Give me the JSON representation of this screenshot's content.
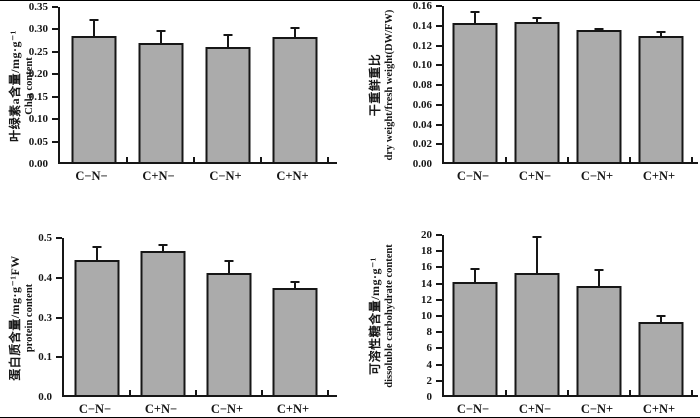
{
  "figure": {
    "background": "#ffffff",
    "bar_fill": "#ababab",
    "bar_border": "#161616",
    "axis_color": "#161616",
    "frame_line_color": "#000000"
  },
  "chart_data": [
    {
      "id": "chla",
      "type": "bar",
      "title": "",
      "ylabel_zh": "叶绿素a含量/mg·g⁻¹",
      "ylabel_en": "Chla content",
      "categories": [
        "C−N−",
        "C+N−",
        "C−N+",
        "C+N+"
      ],
      "values": [
        0.285,
        0.268,
        0.26,
        0.283
      ],
      "errors": [
        0.038,
        0.029,
        0.029,
        0.023
      ],
      "ylim": [
        0,
        0.35
      ],
      "yticks": [
        "0.00",
        "0.05",
        "0.10",
        "0.15",
        "0.20",
        "0.25",
        "0.30",
        "0.35"
      ],
      "grid": "off",
      "legend": "none"
    },
    {
      "id": "dry-weight-fresh-weight",
      "type": "bar",
      "title": "",
      "ylabel_zh": "干重鲜重比",
      "ylabel_en": "dry weight/fresh weight(DW/FW)",
      "categories": [
        "C−N−",
        "C+N−",
        "C−N+",
        "C+N+"
      ],
      "values": [
        0.143,
        0.144,
        0.135,
        0.129
      ],
      "errors": [
        0.012,
        0.005,
        0.002,
        0.005
      ],
      "ylim": [
        0,
        0.16
      ],
      "yticks": [
        "0.00",
        "0.02",
        "0.04",
        "0.06",
        "0.08",
        "0.10",
        "0.12",
        "0.14",
        "0.16"
      ],
      "grid": "off",
      "legend": "none"
    },
    {
      "id": "protein",
      "type": "bar",
      "title": "",
      "ylabel_zh": "蛋白质含量/mg·g⁻¹FW",
      "ylabel_en": "protein content",
      "categories": [
        "C−N−",
        "C+N−",
        "C−N+",
        "C+N+"
      ],
      "values": [
        0.43,
        0.46,
        0.39,
        0.34
      ],
      "errors": [
        0.045,
        0.02,
        0.04,
        0.022
      ],
      "ylim": [
        0,
        0.5
      ],
      "yticks": [
        "0.0",
        "0.1",
        "0.3",
        "0.4",
        "0.5"
      ],
      "grid": "off",
      "legend": "none"
    },
    {
      "id": "dissoluble-carbohydrate",
      "type": "bar",
      "title": "",
      "ylabel_zh": "可溶性糖含量/mg·g⁻¹",
      "ylabel_en": "dissoluble carbohydrate content",
      "categories": [
        "C−N−",
        "C+N−",
        "C−N+",
        "C+N+"
      ],
      "values": [
        14.1,
        15.3,
        13.6,
        9.1
      ],
      "errors": [
        1.8,
        4.6,
        2.2,
        0.9
      ],
      "ylim": [
        0,
        20
      ],
      "yticks": [
        "0",
        "2",
        "4",
        "6",
        "8",
        "10",
        "12",
        "14",
        "16",
        "18",
        "20"
      ],
      "grid": "off",
      "legend": "none"
    }
  ]
}
